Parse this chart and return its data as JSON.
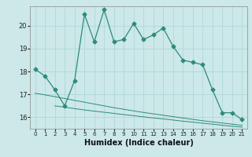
{
  "title": "",
  "xlabel": "Humidex (Indice chaleur)",
  "background_color": "#cce8e8",
  "line_color": "#2e8b77",
  "grid_color": "#aad4d4",
  "x_main": [
    0,
    1,
    2,
    3,
    4,
    5,
    6,
    7,
    8,
    9,
    10,
    11,
    12,
    13,
    14,
    15,
    16,
    17,
    18,
    19,
    20,
    21
  ],
  "y_main": [
    18.1,
    17.8,
    17.2,
    16.5,
    17.6,
    20.5,
    19.3,
    20.7,
    19.3,
    19.4,
    20.1,
    19.4,
    19.6,
    19.9,
    19.1,
    18.5,
    18.4,
    18.3,
    17.2,
    16.2,
    16.2,
    15.9
  ],
  "x_lower1": [
    0,
    1,
    2,
    3,
    4,
    5,
    6,
    7,
    8,
    9,
    10,
    11,
    12,
    13,
    14,
    15,
    16,
    17,
    18,
    19,
    20,
    21
  ],
  "y_lower1": [
    17.05,
    16.98,
    16.9,
    16.82,
    16.74,
    16.66,
    16.58,
    16.5,
    16.42,
    16.35,
    16.28,
    16.21,
    16.15,
    16.09,
    16.03,
    15.97,
    15.91,
    15.85,
    15.8,
    15.75,
    15.7,
    15.65
  ],
  "x_lower2": [
    2,
    3,
    4,
    5,
    6,
    7,
    8,
    9,
    10,
    11,
    12,
    13,
    14,
    15,
    16,
    17,
    18,
    19,
    20,
    21
  ],
  "y_lower2": [
    16.5,
    16.44,
    16.38,
    16.32,
    16.27,
    16.22,
    16.17,
    16.12,
    16.07,
    16.02,
    15.97,
    15.93,
    15.88,
    15.83,
    15.79,
    15.74,
    15.7,
    15.65,
    15.61,
    15.57
  ],
  "ylim": [
    15.5,
    20.85
  ],
  "xlim": [
    -0.5,
    21.5
  ],
  "yticks": [
    16,
    17,
    18,
    19,
    20
  ],
  "xticks": [
    0,
    1,
    2,
    3,
    4,
    5,
    6,
    7,
    8,
    9,
    10,
    11,
    12,
    13,
    14,
    15,
    16,
    17,
    18,
    19,
    20,
    21
  ]
}
